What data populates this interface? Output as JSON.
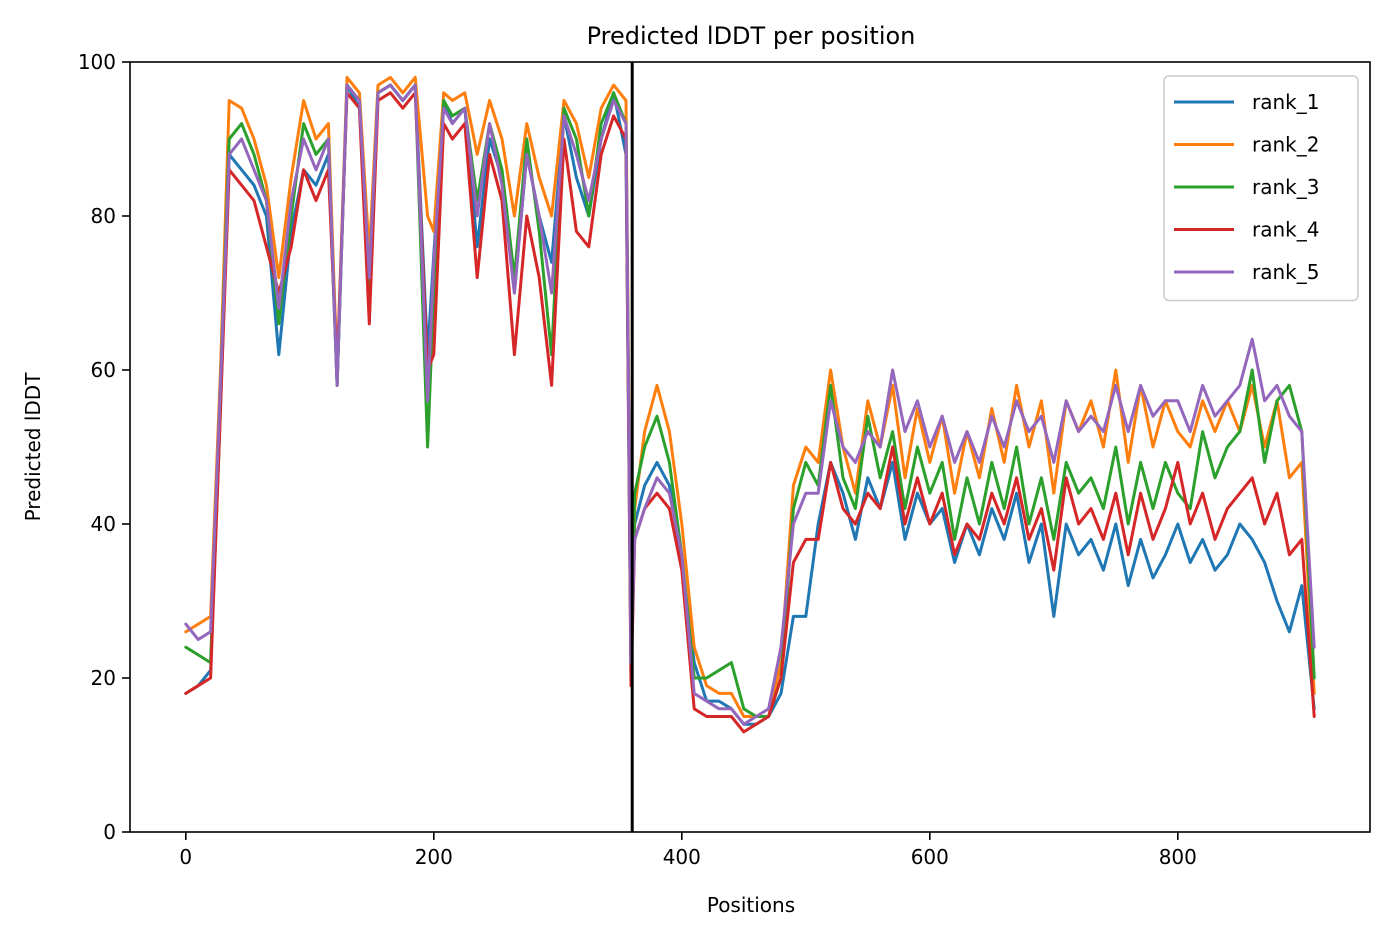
{
  "chart_data": {
    "type": "line",
    "title": "Predicted lDDT per position",
    "xlabel": "Positions",
    "ylabel": "Predicted lDDT",
    "xlim": [
      -45,
      955
    ],
    "ylim": [
      0,
      100
    ],
    "xticks": [
      0,
      200,
      400,
      600,
      800
    ],
    "yticks": [
      0,
      20,
      40,
      60,
      80,
      100
    ],
    "grid": false,
    "legend_position": "top-right",
    "vline_x": 360,
    "vline_color": "#000000",
    "x": [
      0,
      10,
      20,
      28,
      35,
      45,
      55,
      65,
      75,
      85,
      95,
      105,
      115,
      122,
      130,
      140,
      148,
      155,
      165,
      175,
      185,
      195,
      200,
      208,
      215,
      225,
      235,
      245,
      255,
      265,
      275,
      285,
      295,
      305,
      315,
      325,
      335,
      345,
      355,
      359,
      362,
      370,
      380,
      390,
      400,
      410,
      420,
      430,
      440,
      450,
      460,
      470,
      480,
      490,
      500,
      510,
      520,
      530,
      540,
      550,
      560,
      570,
      580,
      590,
      600,
      610,
      620,
      630,
      640,
      650,
      660,
      670,
      680,
      690,
      700,
      710,
      720,
      730,
      740,
      750,
      760,
      770,
      780,
      790,
      800,
      810,
      820,
      830,
      840,
      850,
      860,
      870,
      880,
      890,
      900,
      910
    ],
    "series": [
      {
        "name": "rank_1",
        "color": "#1f77b4",
        "values": [
          18,
          19,
          21,
          55,
          88,
          86,
          84,
          80,
          62,
          78,
          86,
          84,
          88,
          58,
          97,
          94,
          72,
          96,
          97,
          95,
          97,
          62,
          75,
          95,
          92,
          94,
          76,
          90,
          85,
          70,
          88,
          80,
          74,
          93,
          85,
          80,
          90,
          96,
          88,
          20,
          40,
          45,
          48,
          45,
          35,
          22,
          17,
          17,
          16,
          14,
          14,
          15,
          18,
          28,
          28,
          40,
          48,
          44,
          38,
          46,
          42,
          48,
          38,
          44,
          40,
          42,
          35,
          40,
          36,
          42,
          38,
          44,
          35,
          40,
          28,
          40,
          36,
          38,
          34,
          40,
          32,
          38,
          33,
          36,
          40,
          35,
          38,
          34,
          36,
          40,
          38,
          35,
          30,
          26,
          32,
          16
        ]
      },
      {
        "name": "rank_2",
        "color": "#ff7f0e",
        "values": [
          26,
          27,
          28,
          60,
          95,
          94,
          90,
          84,
          72,
          85,
          95,
          90,
          92,
          60,
          98,
          96,
          75,
          97,
          98,
          96,
          98,
          80,
          78,
          96,
          95,
          96,
          88,
          95,
          90,
          80,
          92,
          85,
          80,
          95,
          92,
          85,
          94,
          97,
          95,
          25,
          42,
          52,
          58,
          52,
          40,
          24,
          19,
          18,
          18,
          15,
          15,
          15,
          22,
          45,
          50,
          48,
          60,
          50,
          44,
          56,
          50,
          58,
          46,
          55,
          48,
          54,
          44,
          52,
          46,
          55,
          48,
          58,
          50,
          56,
          44,
          56,
          52,
          56,
          50,
          60,
          48,
          58,
          50,
          56,
          52,
          50,
          56,
          52,
          56,
          52,
          58,
          50,
          56,
          46,
          48,
          18
        ]
      },
      {
        "name": "rank_3",
        "color": "#2ca02c",
        "values": [
          24,
          23,
          22,
          58,
          90,
          92,
          88,
          82,
          66,
          80,
          92,
          88,
          90,
          58,
          97,
          95,
          68,
          96,
          97,
          95,
          97,
          50,
          70,
          95,
          93,
          94,
          82,
          92,
          86,
          72,
          90,
          78,
          62,
          94,
          90,
          80,
          92,
          96,
          92,
          22,
          44,
          50,
          54,
          48,
          36,
          20,
          20,
          21,
          22,
          16,
          15,
          15,
          20,
          42,
          48,
          45,
          58,
          46,
          42,
          54,
          46,
          52,
          42,
          50,
          44,
          48,
          38,
          46,
          40,
          48,
          42,
          50,
          40,
          46,
          38,
          48,
          44,
          46,
          42,
          50,
          40,
          48,
          42,
          48,
          44,
          42,
          52,
          46,
          50,
          52,
          60,
          48,
          56,
          58,
          52,
          20
        ]
      },
      {
        "name": "rank_4",
        "color": "#d62728",
        "values": [
          18,
          19,
          20,
          55,
          86,
          84,
          82,
          76,
          70,
          76,
          86,
          82,
          86,
          60,
          96,
          94,
          66,
          95,
          96,
          94,
          96,
          60,
          62,
          92,
          90,
          92,
          72,
          88,
          82,
          62,
          80,
          72,
          58,
          90,
          78,
          76,
          88,
          93,
          90,
          19,
          38,
          42,
          44,
          42,
          34,
          16,
          15,
          15,
          15,
          13,
          14,
          15,
          20,
          35,
          38,
          38,
          48,
          42,
          40,
          44,
          42,
          50,
          40,
          46,
          40,
          44,
          36,
          40,
          38,
          44,
          40,
          46,
          38,
          42,
          34,
          46,
          40,
          42,
          38,
          44,
          36,
          44,
          38,
          42,
          48,
          40,
          44,
          38,
          42,
          44,
          46,
          40,
          44,
          36,
          38,
          15
        ]
      },
      {
        "name": "rank_5",
        "color": "#9467bd",
        "values": [
          27,
          25,
          26,
          58,
          88,
          90,
          86,
          82,
          68,
          82,
          90,
          86,
          90,
          58,
          97,
          95,
          72,
          96,
          97,
          95,
          97,
          56,
          74,
          94,
          92,
          94,
          80,
          92,
          84,
          70,
          88,
          80,
          70,
          93,
          88,
          82,
          90,
          95,
          92,
          22,
          38,
          42,
          46,
          44,
          36,
          18,
          17,
          16,
          16,
          14,
          15,
          16,
          24,
          40,
          44,
          44,
          56,
          50,
          48,
          52,
          50,
          60,
          52,
          56,
          50,
          54,
          48,
          52,
          48,
          54,
          50,
          56,
          52,
          54,
          48,
          56,
          52,
          54,
          52,
          58,
          52,
          58,
          54,
          56,
          56,
          52,
          58,
          54,
          56,
          58,
          64,
          56,
          58,
          54,
          52,
          24
        ]
      }
    ]
  }
}
